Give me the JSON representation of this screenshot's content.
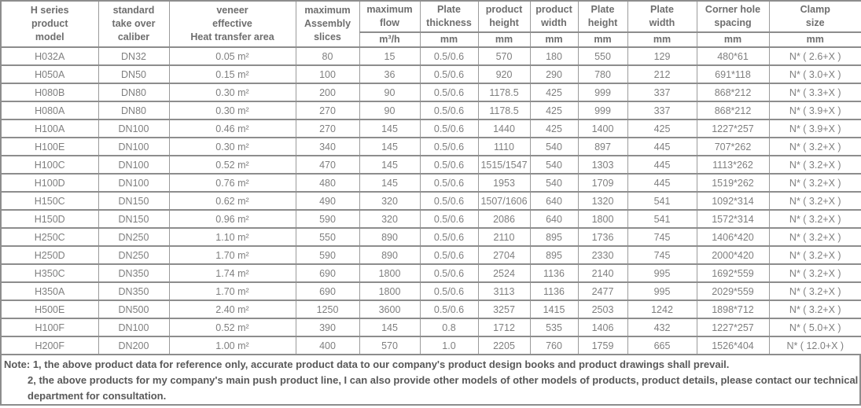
{
  "colors": {
    "border_strong": "#8d8d8d",
    "border_light": "#9b9b9b",
    "header_text": "#6e6e6e",
    "cell_text": "#7f7f7f",
    "note_text": "#595959",
    "background": "#ffffff"
  },
  "table": {
    "columns": [
      {
        "id": "model",
        "label": "H series\nproduct\nmodel",
        "unit": null
      },
      {
        "id": "caliber",
        "label": "standard\ntake over\ncaliber",
        "unit": null
      },
      {
        "id": "area",
        "label": "veneer\neffective\nHeat transfer area",
        "unit": null
      },
      {
        "id": "slices",
        "label": "maximum\nAssembly\nslices",
        "unit": null
      },
      {
        "id": "flow",
        "label": "maximum\nflow",
        "unit": "m³/h"
      },
      {
        "id": "thickness",
        "label": "Plate\nthickness",
        "unit": "mm"
      },
      {
        "id": "product-height",
        "label": "product\nheight",
        "unit": "mm"
      },
      {
        "id": "product-width",
        "label": "product\nwidth",
        "unit": "mm"
      },
      {
        "id": "plate-height",
        "label": "Plate\nheight",
        "unit": "mm"
      },
      {
        "id": "plate-width",
        "label": "Plate\nwidth",
        "unit": "mm"
      },
      {
        "id": "corner-hole",
        "label": "Corner hole\nspacing",
        "unit": "mm"
      },
      {
        "id": "clamp",
        "label": "Clamp\nsize",
        "unit": "mm"
      }
    ],
    "rows": [
      [
        "H032A",
        "DN32",
        "0.05 m²",
        "80",
        "15",
        "0.5/0.6",
        "570",
        "180",
        "550",
        "129",
        "480*61",
        "N* ( 2.6+X )"
      ],
      [
        "H050A",
        "DN50",
        "0.15 m²",
        "100",
        "36",
        "0.5/0.6",
        "920",
        "290",
        "780",
        "212",
        "691*118",
        "N* ( 3.0+X )"
      ],
      [
        "H080B",
        "DN80",
        "0.30 m²",
        "200",
        "90",
        "0.5/0.6",
        "1178.5",
        "425",
        "999",
        "337",
        "868*212",
        "N* ( 3.3+X )"
      ],
      [
        "H080A",
        "DN80",
        "0.30 m²",
        "270",
        "90",
        "0.5/0.6",
        "1178.5",
        "425",
        "999",
        "337",
        "868*212",
        "N* ( 3.9+X )"
      ],
      [
        "H100A",
        "DN100",
        "0.46 m²",
        "270",
        "145",
        "0.5/0.6",
        "1440",
        "425",
        "1400",
        "425",
        "1227*257",
        "N* ( 3.9+X )"
      ],
      [
        "H100E",
        "DN100",
        "0.30 m²",
        "340",
        "145",
        "0.5/0.6",
        "1110",
        "540",
        "897",
        "445",
        "707*262",
        "N* ( 3.2+X )"
      ],
      [
        "H100C",
        "DN100",
        "0.52 m²",
        "470",
        "145",
        "0.5/0.6",
        "1515/1547",
        "540",
        "1303",
        "445",
        "1113*262",
        "N* ( 3.2+X )"
      ],
      [
        "H100D",
        "DN100",
        "0.76 m²",
        "480",
        "145",
        "0.5/0.6",
        "1953",
        "540",
        "1709",
        "445",
        "1519*262",
        "N* ( 3.2+X )"
      ],
      [
        "H150C",
        "DN150",
        "0.62 m²",
        "490",
        "320",
        "0.5/0.6",
        "1507/1606",
        "640",
        "1320",
        "541",
        "1092*314",
        "N* ( 3.2+X )"
      ],
      [
        "H150D",
        "DN150",
        "0.96 m²",
        "590",
        "320",
        "0.5/0.6",
        "2086",
        "640",
        "1800",
        "541",
        "1572*314",
        "N* ( 3.2+X )"
      ],
      [
        "H250C",
        "DN250",
        "1.10 m²",
        "550",
        "890",
        "0.5/0.6",
        "2110",
        "895",
        "1736",
        "745",
        "1406*420",
        "N* ( 3.2+X )"
      ],
      [
        "H250D",
        "DN250",
        "1.70 m²",
        "590",
        "890",
        "0.5/0.6",
        "2704",
        "895",
        "2330",
        "745",
        "2000*420",
        "N* ( 3.2+X )"
      ],
      [
        "H350C",
        "DN350",
        "1.74 m²",
        "690",
        "1800",
        "0.5/0.6",
        "2524",
        "1136",
        "2140",
        "995",
        "1692*559",
        "N* ( 3.2+X )"
      ],
      [
        "H350A",
        "DN350",
        "1.70 m²",
        "690",
        "1800",
        "0.5/0.6",
        "3113",
        "1136",
        "2477",
        "995",
        "2029*559",
        "N* ( 3.2+X )"
      ],
      [
        "H500E",
        "DN500",
        "2.40 m²",
        "1250",
        "3600",
        "0.5/0.6",
        "3257",
        "1415",
        "2503",
        "1242",
        "1898*712",
        "N* ( 3.2+X )"
      ],
      [
        "H100F",
        "DN100",
        "0.52 m²",
        "390",
        "145",
        "0.8",
        "1712",
        "535",
        "1406",
        "432",
        "1227*257",
        "N* ( 5.0+X )"
      ],
      [
        "H200F",
        "DN200",
        "1.00 m²",
        "400",
        "570",
        "1.0",
        "2205",
        "760",
        "1759",
        "665",
        "1526*404",
        "N* ( 12.0+X )"
      ]
    ]
  },
  "notes": {
    "line1": "Note: 1, the above product data for reference only, accurate product data to our company's product design books and product drawings shall prevail.",
    "line2": "2, the above products for my company's main push product line, I can also provide other models of other models of products, product details, please contact our technical",
    "line3": "department for consultation."
  }
}
